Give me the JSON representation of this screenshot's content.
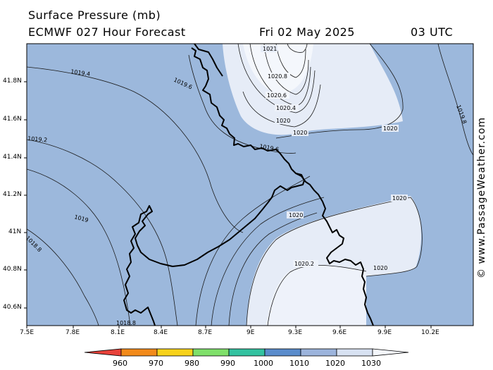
{
  "header": {
    "title": "Surface Pressure (mb)",
    "model": "ECMWF 027 Hour Forecast",
    "date": "Fri 02 May 2025",
    "time": "03 UTC"
  },
  "credit": "© www.PassageWeather.com",
  "axes": {
    "latitudes": [
      "41.8N",
      "41.6N",
      "41.4N",
      "41.2N",
      "41N",
      "40.8N",
      "40.6N"
    ],
    "longitudes": [
      "7.5E",
      "7.8E",
      "8.1E",
      "8.4E",
      "8.7E",
      "9E",
      "9.3E",
      "9.6E",
      "9.9E",
      "10.2E"
    ]
  },
  "isobar_labels": [
    "1021",
    "1020.8",
    "1020.6",
    "1020.4",
    "1020.2",
    "1020",
    "1019.8",
    "1019.6",
    "1019.4",
    "1019.2",
    "1019",
    "1018.8"
  ],
  "colorbar": {
    "ticks": [
      "960",
      "970",
      "980",
      "990",
      "1000",
      "1010",
      "1020",
      "1030"
    ],
    "colors": [
      "#e8423a",
      "#f28a1a",
      "#f7d21a",
      "#7fe06a",
      "#33c2a0",
      "#5a8ccc",
      "#9cb4dc",
      "#d8e2f2",
      "#f4f7fc"
    ]
  },
  "colors": {
    "low_pressure": "#9cb8dc",
    "high_pressure": "#e6ecf7",
    "coast": "#000000"
  }
}
